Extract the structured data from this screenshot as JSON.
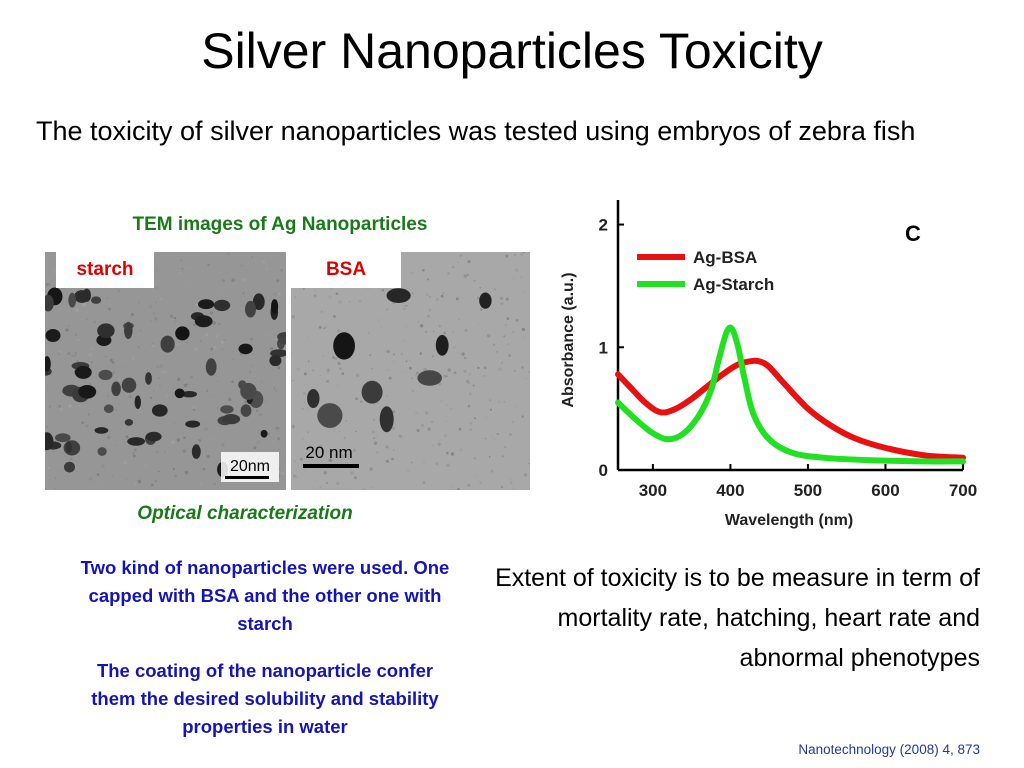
{
  "slide": {
    "title": "Silver Nanoparticles Toxicity",
    "intro": "The toxicity of silver nanoparticles was tested using embryos of zebra fish",
    "tem_heading": "TEM images of Ag Nanoparticles",
    "tem_labels": {
      "starch": "starch",
      "bsa": "BSA"
    },
    "scale_bars": {
      "starch": "20nm",
      "bsa": "20 nm"
    },
    "optical_caption": "Optical characterization",
    "para1": "Two kind of nanoparticles were used. One capped with BSA and the other one with starch",
    "para2": "The coating of the nanoparticle confer them the desired solubility and stability properties in water",
    "extent": "Extent of toxicity is to be measure in term of mortality rate, hatching, heart rate and abnormal phenotypes",
    "citation": "Nanotechnology (2008) 4, 873"
  },
  "colors": {
    "title": "#000000",
    "green_heading": "#1a7a1a",
    "red_label": "#e00000",
    "blue_text": "#1414b8",
    "citation": "#1f3aa0",
    "bsa": "#e81010",
    "starch": "#22e022"
  },
  "chart_data": {
    "type": "line",
    "panel_label": "C",
    "xlabel": "Wavelength  (nm)",
    "ylabel": "Absorbance (a.u.)",
    "xlim": [
      255,
      700
    ],
    "ylim": [
      0,
      2.2
    ],
    "x_ticks": [
      300,
      400,
      500,
      600,
      700
    ],
    "y_ticks": [
      0,
      1,
      2
    ],
    "legend_position": "top-left",
    "series": [
      {
        "name": "Ag-BSA",
        "color": "#e81010",
        "x": [
          255,
          270,
          290,
          310,
          330,
          350,
          370,
          390,
          410,
          430,
          440,
          450,
          470,
          500,
          530,
          560,
          600,
          650,
          700
        ],
        "y": [
          0.78,
          0.68,
          0.55,
          0.47,
          0.5,
          0.58,
          0.68,
          0.78,
          0.86,
          0.89,
          0.88,
          0.84,
          0.7,
          0.5,
          0.36,
          0.26,
          0.18,
          0.12,
          0.1
        ]
      },
      {
        "name": "Ag-Starch",
        "color": "#22e022",
        "x": [
          255,
          280,
          300,
          320,
          340,
          360,
          375,
          385,
          395,
          402,
          410,
          418,
          430,
          450,
          480,
          520,
          580,
          650,
          700
        ],
        "y": [
          0.55,
          0.4,
          0.3,
          0.25,
          0.3,
          0.45,
          0.65,
          0.9,
          1.12,
          1.15,
          1.0,
          0.75,
          0.45,
          0.25,
          0.14,
          0.1,
          0.08,
          0.07,
          0.07
        ]
      }
    ]
  }
}
